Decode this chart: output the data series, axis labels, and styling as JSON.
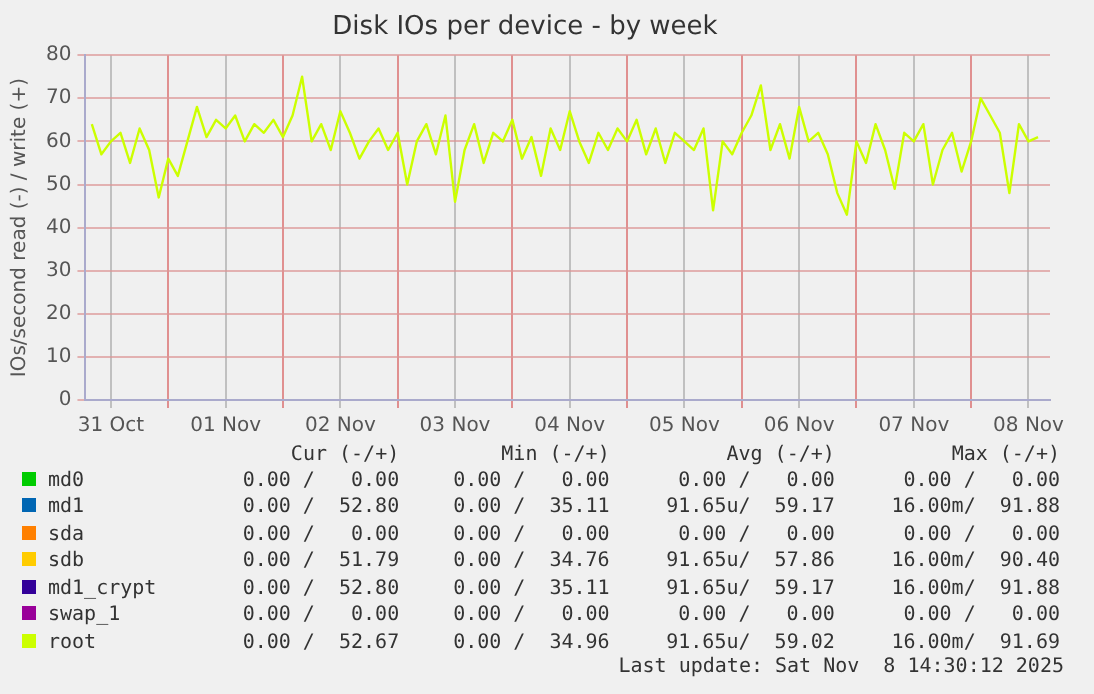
{
  "chart_data": {
    "type": "line",
    "title": "Disk IOs per device - by week",
    "ylabel": "IOs/second read (-) / write (+)",
    "x": [
      "2025-10-31T08:00",
      "2025-10-31T10:00",
      "2025-10-31T12:00",
      "2025-10-31T14:00",
      "2025-10-31T16:00",
      "2025-10-31T18:00",
      "2025-10-31T20:00",
      "2025-10-31T22:00",
      "2025-11-01T00:00",
      "2025-11-01T02:00",
      "2025-11-01T04:00",
      "2025-11-01T06:00",
      "2025-11-01T08:00",
      "2025-11-01T10:00",
      "2025-11-01T12:00",
      "2025-11-01T14:00",
      "2025-11-01T16:00",
      "2025-11-01T18:00",
      "2025-11-01T20:00",
      "2025-11-01T22:00",
      "2025-11-02T00:00",
      "2025-11-02T02:00",
      "2025-11-02T04:00",
      "2025-11-02T06:00",
      "2025-11-02T08:00",
      "2025-11-02T10:00",
      "2025-11-02T12:00",
      "2025-11-02T14:00",
      "2025-11-02T16:00",
      "2025-11-02T18:00",
      "2025-11-02T20:00",
      "2025-11-02T22:00",
      "2025-11-03T00:00",
      "2025-11-03T02:00",
      "2025-11-03T04:00",
      "2025-11-03T06:00",
      "2025-11-03T08:00",
      "2025-11-03T10:00",
      "2025-11-03T12:00",
      "2025-11-03T14:00",
      "2025-11-03T16:00",
      "2025-11-03T18:00",
      "2025-11-03T20:00",
      "2025-11-03T22:00",
      "2025-11-04T00:00",
      "2025-11-04T02:00",
      "2025-11-04T04:00",
      "2025-11-04T06:00",
      "2025-11-04T08:00",
      "2025-11-04T10:00",
      "2025-11-04T12:00",
      "2025-11-04T14:00",
      "2025-11-04T16:00",
      "2025-11-04T18:00",
      "2025-11-04T20:00",
      "2025-11-04T22:00",
      "2025-11-05T00:00",
      "2025-11-05T02:00",
      "2025-11-05T04:00",
      "2025-11-05T06:00",
      "2025-11-05T08:00",
      "2025-11-05T10:00",
      "2025-11-05T12:00",
      "2025-11-05T14:00",
      "2025-11-05T16:00",
      "2025-11-05T18:00",
      "2025-11-05T20:00",
      "2025-11-05T22:00",
      "2025-11-06T00:00",
      "2025-11-06T02:00",
      "2025-11-06T04:00",
      "2025-11-06T06:00",
      "2025-11-06T08:00",
      "2025-11-06T10:00",
      "2025-11-06T12:00",
      "2025-11-06T14:00",
      "2025-11-06T16:00",
      "2025-11-06T18:00",
      "2025-11-06T20:00",
      "2025-11-06T22:00",
      "2025-11-07T00:00",
      "2025-11-07T02:00",
      "2025-11-07T04:00",
      "2025-11-07T06:00",
      "2025-11-07T08:00",
      "2025-11-07T10:00",
      "2025-11-07T12:00",
      "2025-11-07T14:00",
      "2025-11-07T16:00",
      "2025-11-07T18:00",
      "2025-11-07T20:00",
      "2025-11-07T22:00",
      "2025-11-08T00:00",
      "2025-11-08T02:00",
      "2025-11-08T04:00",
      "2025-11-08T06:00",
      "2025-11-08T08:00",
      "2025-11-08T10:00",
      "2025-11-08T12:00",
      "2025-11-08T14:00"
    ],
    "series": [
      {
        "name": "md0",
        "color": "#00cc00",
        "values": [
          null,
          null,
          null,
          null,
          null,
          null,
          null,
          null,
          null,
          null,
          null,
          null,
          null,
          null,
          null,
          null,
          null,
          null,
          null,
          null,
          null,
          null,
          null,
          null,
          null,
          null,
          null,
          null,
          null,
          null,
          null,
          null,
          null,
          null,
          null,
          null,
          null,
          null,
          null,
          null,
          null,
          null,
          null,
          null,
          null,
          null,
          null,
          null,
          null,
          null,
          null,
          null,
          null,
          null,
          null,
          null,
          null,
          null,
          null,
          null,
          null,
          null,
          null,
          null,
          null,
          null,
          null,
          null,
          null,
          null,
          null,
          null,
          null,
          null,
          null,
          null,
          null,
          null,
          null,
          null,
          null,
          null,
          null,
          null,
          null,
          null,
          null,
          null,
          null,
          null,
          null,
          null,
          null,
          null,
          null,
          null,
          null,
          null,
          null,
          null
        ]
      },
      {
        "name": "md1",
        "color": "#0066b3",
        "values": [
          null,
          null,
          null,
          null,
          null,
          null,
          null,
          null,
          null,
          null,
          null,
          null,
          null,
          null,
          null,
          null,
          null,
          null,
          null,
          null,
          null,
          null,
          null,
          null,
          null,
          null,
          null,
          null,
          null,
          null,
          null,
          null,
          null,
          null,
          null,
          null,
          null,
          null,
          null,
          null,
          null,
          null,
          null,
          null,
          null,
          null,
          null,
          null,
          null,
          null,
          null,
          null,
          null,
          null,
          null,
          null,
          null,
          null,
          null,
          null,
          null,
          null,
          null,
          null,
          null,
          null,
          null,
          null,
          null,
          null,
          null,
          null,
          null,
          null,
          null,
          null,
          null,
          null,
          null,
          null,
          null,
          null,
          null,
          null,
          null,
          null,
          null,
          null,
          null,
          null,
          null,
          null,
          null,
          null,
          null,
          null,
          null,
          null,
          null,
          null
        ]
      },
      {
        "name": "sda",
        "color": "#ff8000",
        "values": [
          null,
          null,
          null,
          null,
          null,
          null,
          null,
          null,
          null,
          null,
          null,
          null,
          null,
          null,
          null,
          null,
          null,
          null,
          null,
          null,
          null,
          null,
          null,
          null,
          null,
          null,
          null,
          null,
          null,
          null,
          null,
          null,
          null,
          null,
          null,
          null,
          null,
          null,
          null,
          null,
          null,
          null,
          null,
          null,
          null,
          null,
          null,
          null,
          null,
          null,
          null,
          null,
          null,
          null,
          null,
          null,
          null,
          null,
          null,
          null,
          null,
          null,
          null,
          null,
          null,
          null,
          null,
          null,
          null,
          null,
          null,
          null,
          null,
          null,
          null,
          null,
          null,
          null,
          null,
          null,
          null,
          null,
          null,
          null,
          null,
          null,
          null,
          null,
          null,
          null,
          null,
          null,
          null,
          null,
          null,
          null,
          null,
          null,
          null,
          null
        ]
      },
      {
        "name": "sdb",
        "color": "#ffcc00",
        "values": [
          null,
          null,
          null,
          null,
          null,
          null,
          null,
          null,
          null,
          null,
          null,
          null,
          null,
          null,
          null,
          null,
          null,
          null,
          null,
          null,
          null,
          null,
          null,
          null,
          null,
          null,
          null,
          null,
          null,
          null,
          null,
          null,
          null,
          null,
          null,
          null,
          null,
          null,
          null,
          null,
          null,
          null,
          null,
          null,
          null,
          null,
          null,
          null,
          null,
          null,
          null,
          null,
          null,
          null,
          null,
          null,
          null,
          null,
          null,
          null,
          null,
          null,
          null,
          null,
          null,
          null,
          null,
          null,
          null,
          null,
          null,
          null,
          null,
          null,
          null,
          null,
          null,
          null,
          null,
          null,
          null,
          null,
          null,
          null,
          null,
          null,
          null,
          null,
          null,
          null,
          null,
          null,
          null,
          null,
          null,
          null,
          null,
          null,
          null,
          null
        ]
      },
      {
        "name": "md1_crypt",
        "color": "#330099",
        "values": [
          null,
          null,
          null,
          null,
          null,
          null,
          null,
          null,
          null,
          null,
          null,
          null,
          null,
          null,
          null,
          null,
          null,
          null,
          null,
          null,
          null,
          null,
          null,
          null,
          null,
          null,
          null,
          null,
          null,
          null,
          null,
          null,
          null,
          null,
          null,
          null,
          null,
          null,
          null,
          null,
          null,
          null,
          null,
          null,
          null,
          null,
          null,
          null,
          null,
          null,
          null,
          null,
          null,
          null,
          null,
          null,
          null,
          null,
          null,
          null,
          null,
          null,
          null,
          null,
          null,
          null,
          null,
          null,
          null,
          null,
          null,
          null,
          null,
          null,
          null,
          null,
          null,
          null,
          null,
          null,
          null,
          null,
          null,
          null,
          null,
          null,
          null,
          null,
          null,
          null,
          null,
          null,
          null,
          null,
          null,
          null,
          null,
          null,
          null,
          null
        ]
      },
      {
        "name": "swap_1",
        "color": "#990099",
        "values": [
          null,
          null,
          null,
          null,
          null,
          null,
          null,
          null,
          null,
          null,
          null,
          null,
          null,
          null,
          null,
          null,
          null,
          null,
          null,
          null,
          null,
          null,
          null,
          null,
          null,
          null,
          null,
          null,
          null,
          null,
          null,
          null,
          null,
          null,
          null,
          null,
          null,
          null,
          null,
          null,
          null,
          null,
          null,
          null,
          null,
          null,
          null,
          null,
          null,
          null,
          null,
          null,
          null,
          null,
          null,
          null,
          null,
          null,
          null,
          null,
          null,
          null,
          null,
          null,
          null,
          null,
          null,
          null,
          null,
          null,
          null,
          null,
          null,
          null,
          null,
          null,
          null,
          null,
          null,
          null,
          null,
          null,
          null,
          null,
          null,
          null,
          null,
          null,
          null,
          null,
          null,
          null,
          null,
          null,
          null,
          null,
          null,
          null,
          null,
          null
        ]
      },
      {
        "name": "root",
        "color": "#ccff00",
        "values": [
          64,
          57,
          60,
          62,
          55,
          63,
          58,
          47,
          56,
          52,
          60,
          68,
          61,
          65,
          63,
          66,
          60,
          64,
          62,
          65,
          61,
          66,
          75,
          60,
          64,
          58,
          67,
          62,
          56,
          60,
          63,
          58,
          62,
          50,
          60,
          64,
          57,
          66,
          46,
          58,
          64,
          55,
          62,
          60,
          65,
          56,
          61,
          52,
          63,
          58,
          67,
          60,
          55,
          62,
          58,
          63,
          60,
          65,
          57,
          63,
          55,
          62,
          60,
          58,
          63,
          44,
          60,
          57,
          62,
          66,
          73,
          58,
          64,
          56,
          68,
          60,
          62,
          57,
          48,
          43,
          60,
          55,
          64,
          58,
          49,
          62,
          60,
          64,
          50,
          58,
          62,
          53,
          60,
          70,
          66,
          62,
          48,
          64,
          60,
          61
        ]
      }
    ],
    "xlim": [
      "2025-10-31T06:40",
      "2025-11-08T16:30"
    ],
    "xticks": [
      {
        "value": "2025-10-31T12:00",
        "label": "31 Oct"
      },
      {
        "value": "2025-11-01T00:00",
        "label": null
      },
      {
        "value": "2025-11-01T12:00",
        "label": "01 Nov"
      },
      {
        "value": "2025-11-02T00:00",
        "label": null
      },
      {
        "value": "2025-11-02T12:00",
        "label": "02 Nov"
      },
      {
        "value": "2025-11-03T00:00",
        "label": null
      },
      {
        "value": "2025-11-03T12:00",
        "label": "03 Nov"
      },
      {
        "value": "2025-11-04T00:00",
        "label": null
      },
      {
        "value": "2025-11-04T12:00",
        "label": "04 Nov"
      },
      {
        "value": "2025-11-05T00:00",
        "label": null
      },
      {
        "value": "2025-11-05T12:00",
        "label": "05 Nov"
      },
      {
        "value": "2025-11-06T00:00",
        "label": null
      },
      {
        "value": "2025-11-06T12:00",
        "label": "06 Nov"
      },
      {
        "value": "2025-11-07T00:00",
        "label": null
      },
      {
        "value": "2025-11-07T12:00",
        "label": "07 Nov"
      },
      {
        "value": "2025-11-08T00:00",
        "label": null
      },
      {
        "value": "2025-11-08T12:00",
        "label": "08 Nov"
      }
    ],
    "ylim": [
      0,
      80
    ],
    "yticks": [
      0,
      10,
      20,
      30,
      40,
      50,
      60,
      70,
      80
    ],
    "grid": true,
    "legend": "bottom",
    "annotations": [
      "Cur (-/+)",
      "Min (-/+)",
      "Avg (-/+)",
      "Max (-/+)",
      "0.00 /   0.00",
      "0.00 /   0.00",
      "0.00 /   0.00",
      "0.00 /   0.00",
      "0.00 /  52.80",
      "0.00 /  35.11",
      "91.65u/  59.17",
      "16.00m/  91.88",
      "0.00 /   0.00",
      "0.00 /   0.00",
      "0.00 /   0.00",
      "0.00 /   0.00",
      "0.00 /  51.79",
      "0.00 /  34.76",
      "91.65u/  57.86",
      "16.00m/  90.40",
      "0.00 /  52.80",
      "0.00 /  35.11",
      "91.65u/  59.17",
      "16.00m/  91.88",
      "0.00 /   0.00",
      "0.00 /   0.00",
      "0.00 /   0.00",
      "0.00 /   0.00",
      "0.00 /  52.67",
      "0.00 /  34.96",
      "91.65u/  59.02",
      "16.00m/  91.69",
      "Last update: Sat Nov  8 14:30:12 2025"
    ]
  }
}
